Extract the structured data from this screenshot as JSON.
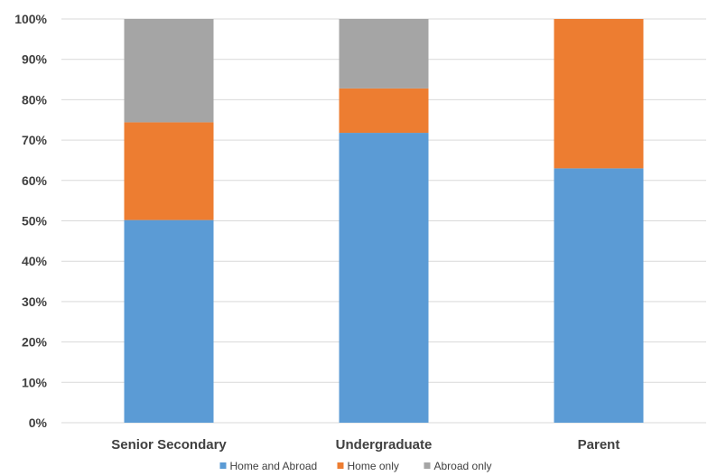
{
  "chart_data": {
    "type": "bar",
    "stacked": true,
    "percent": true,
    "categories": [
      "Senior Secondary",
      "Undergraduate",
      "Parent"
    ],
    "series": [
      {
        "name": "Home and Abroad",
        "color": "#5B9BD5",
        "values": [
          50.2,
          71.8,
          63.0
        ]
      },
      {
        "name": "Home only",
        "color": "#ED7D31",
        "values": [
          24.2,
          11.0,
          37.0
        ]
      },
      {
        "name": "Abroad only",
        "color": "#A5A5A5",
        "values": [
          25.6,
          17.2,
          0.0
        ]
      }
    ],
    "yticks": [
      "0%",
      "10%",
      "20%",
      "30%",
      "40%",
      "50%",
      "60%",
      "70%",
      "80%",
      "90%",
      "100%"
    ],
    "ylim": [
      0,
      100
    ],
    "grid": true,
    "legend_position": "bottom"
  }
}
